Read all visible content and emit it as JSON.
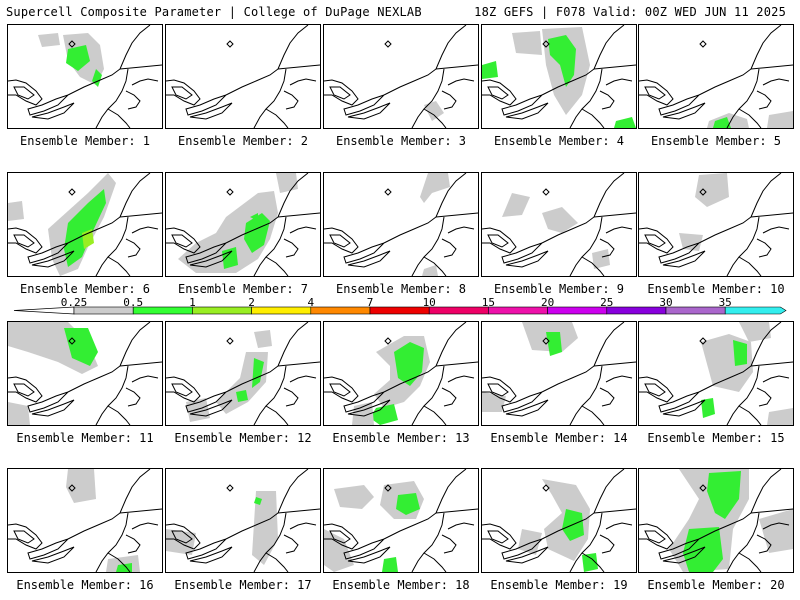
{
  "header": {
    "title_left": "Supercell Composite Parameter | College of DuPage NEXLAB",
    "title_right": "18Z GEFS | F078 Valid: 00Z WED JUN 11 2025"
  },
  "colorbar": {
    "ticks": [
      "0.25",
      "0.5",
      "1",
      "2",
      "4",
      "7",
      "10",
      "15",
      "20",
      "25",
      "30",
      "35"
    ],
    "colors": [
      "#cccccc",
      "#33ff33",
      "#99ee22",
      "#ffee00",
      "#ff8800",
      "#ee0000",
      "#ee0066",
      "#ee11aa",
      "#cc00ee",
      "#8800dd",
      "#aa66cc",
      "#33eeee"
    ]
  },
  "members": [
    {
      "label": "Ensemble Member: 1",
      "member": 1
    },
    {
      "label": "Ensemble Member: 2",
      "member": 2
    },
    {
      "label": "Ensemble Member: 3",
      "member": 3
    },
    {
      "label": "Ensemble Member: 4",
      "member": 4
    },
    {
      "label": "Ensemble Member: 5",
      "member": 5
    },
    {
      "label": "Ensemble Member: 6",
      "member": 6
    },
    {
      "label": "Ensemble Member: 7",
      "member": 7
    },
    {
      "label": "Ensemble Member: 8",
      "member": 8
    },
    {
      "label": "Ensemble Member: 9",
      "member": 9
    },
    {
      "label": "Ensemble Member: 10",
      "member": 10
    },
    {
      "label": "Ensemble Member: 11",
      "member": 11
    },
    {
      "label": "Ensemble Member: 12",
      "member": 12
    },
    {
      "label": "Ensemble Member: 13",
      "member": 13
    },
    {
      "label": "Ensemble Member: 14",
      "member": 14
    },
    {
      "label": "Ensemble Member: 15",
      "member": 15
    },
    {
      "label": "Ensemble Member: 16",
      "member": 16
    },
    {
      "label": "Ensemble Member: 17",
      "member": 17
    },
    {
      "label": "Ensemble Member: 18",
      "member": 18
    },
    {
      "label": "Ensemble Member: 19",
      "member": 19
    },
    {
      "label": "Ensemble Member: 20",
      "member": 20
    }
  ]
}
